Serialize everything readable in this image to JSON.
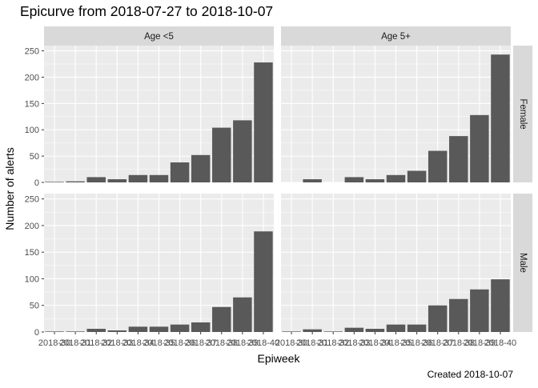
{
  "colors": {
    "panel_bg": "#ebebeb",
    "strip_bg": "#d9d9d9",
    "grid_major": "#ffffff",
    "bar_fill": "#595959",
    "text": "#1a1a1a",
    "tick_text": "#4d4d4d"
  },
  "caption": "Created 2018-10-07",
  "chart_data": {
    "type": "bar",
    "title": "Epicurve from 2018-07-27 to 2018-10-07",
    "xlabel": "Epiweek",
    "ylabel": "Number of alerts",
    "categories": [
      "2018-30",
      "2018-31",
      "2018-32",
      "2018-33",
      "2018-34",
      "2018-35",
      "2018-36",
      "2018-37",
      "2018-38",
      "2018-39",
      "2018-40"
    ],
    "x_tick_labels": [
      "2018-30",
      "2018-31",
      "2018-32",
      "2018-33",
      "2018-34",
      "2018-35",
      "2018-36",
      "2018-37",
      "2018-38",
      "2018-39",
      "2018-40"
    ],
    "ylim": [
      0,
      260
    ],
    "yticks": [
      0,
      50,
      100,
      150,
      200,
      250
    ],
    "grid": true,
    "facet_columns": [
      "Age <5",
      "Age 5+"
    ],
    "facet_rows": [
      "Female",
      "Male"
    ],
    "panels": [
      {
        "column": "Age <5",
        "row": "Female",
        "values": [
          1,
          2,
          10,
          6,
          14,
          14,
          38,
          52,
          104,
          118,
          228
        ]
      },
      {
        "column": "Age 5+",
        "row": "Female",
        "values": [
          0,
          6,
          0,
          10,
          6,
          14,
          22,
          60,
          88,
          128,
          243
        ]
      },
      {
        "column": "Age <5",
        "row": "Male",
        "values": [
          1,
          1,
          6,
          3,
          10,
          10,
          14,
          18,
          47,
          65,
          189
        ]
      },
      {
        "column": "Age 5+",
        "row": "Male",
        "values": [
          1,
          5,
          1,
          8,
          6,
          14,
          14,
          50,
          62,
          80,
          99
        ]
      }
    ]
  }
}
